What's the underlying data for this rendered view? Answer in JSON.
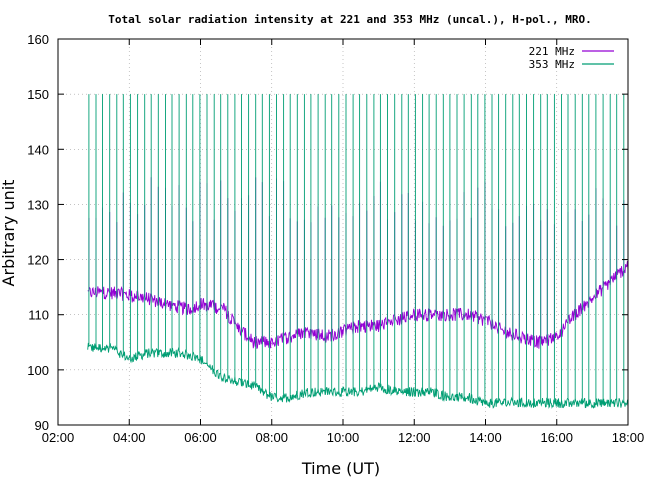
{
  "chart_data": {
    "type": "line",
    "title": "Total solar radiation intensity at 221 and 353 MHz (uncal.), H-pol., MRO.",
    "xlabel": "Time (UT)",
    "ylabel": "Arbitrary unit",
    "xlim": [
      "02:00",
      "18:00"
    ],
    "ylim": [
      90,
      160
    ],
    "x_ticks": [
      "02:00",
      "04:00",
      "06:00",
      "08:00",
      "10:00",
      "12:00",
      "14:00",
      "16:00",
      "18:00"
    ],
    "y_ticks": [
      "90",
      "100",
      "110",
      "120",
      "130",
      "140",
      "150",
      "160"
    ],
    "grid": true,
    "legend_position": "top-right",
    "series": [
      {
        "name": "221 MHz",
        "color": "#9400d3",
        "baseline_x": [
          "02:50",
          "03:30",
          "04:30",
          "05:00",
          "05:40",
          "06:00",
          "06:40",
          "07:00",
          "07:30",
          "08:00",
          "08:30",
          "09:00",
          "09:30",
          "10:00",
          "10:30",
          "11:00",
          "11:30",
          "12:00",
          "12:30",
          "13:00",
          "13:30",
          "14:00",
          "14:30",
          "15:00",
          "15:30",
          "16:00",
          "16:30",
          "17:00",
          "17:30",
          "18:00"
        ],
        "baseline_y": [
          114,
          114,
          113,
          112,
          111,
          112,
          111,
          108,
          105,
          105,
          106,
          107,
          106,
          107,
          108,
          108,
          109,
          110,
          110,
          110,
          110,
          109,
          107,
          106,
          105,
          106,
          110,
          113,
          116,
          119
        ],
        "spike_peak_range": [
          126,
          135
        ]
      },
      {
        "name": "353 MHz",
        "color": "#009e73",
        "baseline_x": [
          "02:50",
          "03:30",
          "04:00",
          "04:30",
          "05:00",
          "05:30",
          "06:00",
          "06:30",
          "07:00",
          "07:30",
          "08:00",
          "08:30",
          "09:00",
          "09:30",
          "10:00",
          "10:30",
          "11:00",
          "11:30",
          "12:00",
          "12:30",
          "13:00",
          "13:30",
          "14:00",
          "14:30",
          "15:00",
          "15:30",
          "16:00",
          "16:30",
          "17:00",
          "17:30",
          "18:00"
        ],
        "baseline_y": [
          104,
          104,
          102,
          103,
          103,
          103,
          102,
          99,
          98,
          97,
          95,
          95,
          96,
          96,
          96,
          96,
          97,
          96,
          96,
          96,
          95,
          95,
          94,
          94,
          94,
          94,
          94,
          94,
          94,
          94,
          94
        ],
        "spike_peak": 150
      }
    ]
  }
}
